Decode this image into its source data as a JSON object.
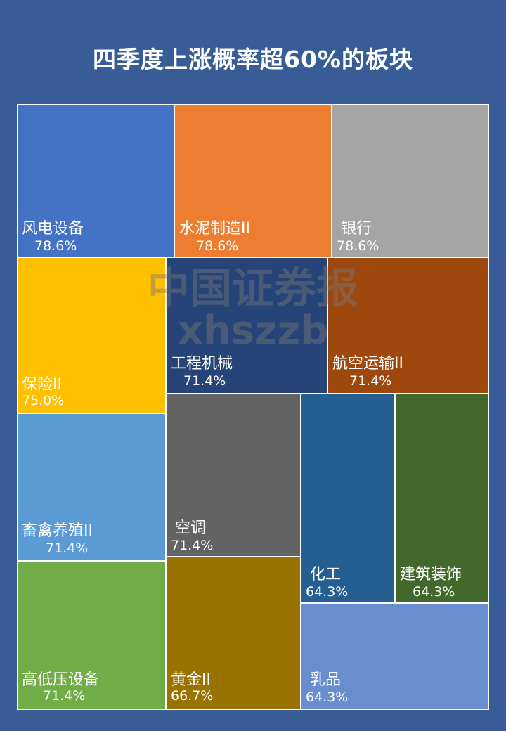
{
  "chart_data": {
    "type": "treemap",
    "title": "四季度上涨概率超60%的板块",
    "items": [
      {
        "name": "风电设备",
        "value": 78.6,
        "label": "78.6%",
        "color": "#4472c4"
      },
      {
        "name": "水泥制造II",
        "value": 78.6,
        "label": "78.6%",
        "color": "#ed7d31"
      },
      {
        "name": "银行",
        "value": 78.6,
        "label": "78.6%",
        "color": "#a5a5a5"
      },
      {
        "name": "保险II",
        "value": 75.0,
        "label": "75.0%",
        "color": "#ffc000"
      },
      {
        "name": "工程机械",
        "value": 71.4,
        "label": "71.4%",
        "color": "#264478"
      },
      {
        "name": "航空运输II",
        "value": 71.4,
        "label": "71.4%",
        "color": "#9e480e"
      },
      {
        "name": "畜禽养殖II",
        "value": 71.4,
        "label": "71.4%",
        "color": "#5b9bd5"
      },
      {
        "name": "空调",
        "value": 71.4,
        "label": "71.4%",
        "color": "#636363"
      },
      {
        "name": "化工",
        "value": 64.3,
        "label": "64.3%",
        "color": "#255e91"
      },
      {
        "name": "建筑装饰",
        "value": 64.3,
        "label": "64.3%",
        "color": "#43682b"
      },
      {
        "name": "高低压设备",
        "value": 71.4,
        "label": "71.4%",
        "color": "#70ad47"
      },
      {
        "name": "黄金II",
        "value": 66.7,
        "label": "66.7%",
        "color": "#997300"
      },
      {
        "name": "乳品",
        "value": 64.3,
        "label": "64.3%",
        "color": "#698ed0"
      }
    ]
  },
  "watermark": {
    "line1": "中国证券报",
    "line2": "xhszzb"
  }
}
